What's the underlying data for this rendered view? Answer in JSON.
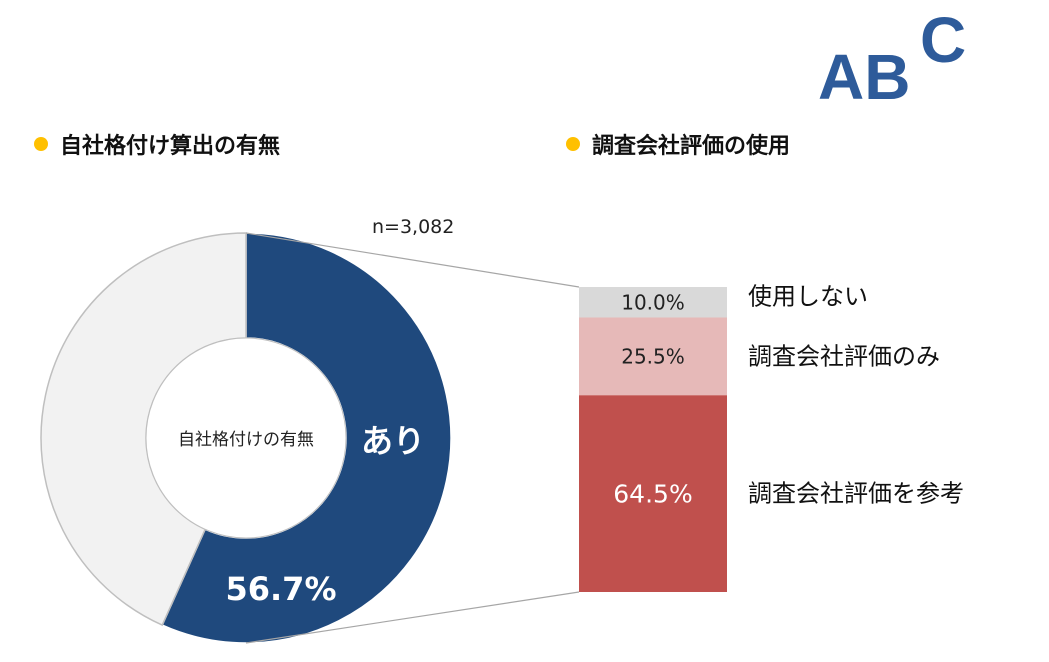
{
  "logo": {
    "text": "ABC",
    "color": "#2e5b9a"
  },
  "left_title": "自社格付け算出の有無",
  "right_title": "調査会社評価の使用",
  "colors": {
    "bullet": "#ffc000",
    "ari": "#1f497d",
    "nashi": "#f2f2f2",
    "seg1": "#d9d9d9",
    "seg2": "#e6b9b8",
    "seg3": "#c0504d"
  },
  "chart_data": [
    {
      "type": "pie",
      "donut": true,
      "title": "自社格付け算出の有無",
      "center_label": "自社格付けの有無",
      "n_label": "n=3,082",
      "slices": [
        {
          "label": "あり",
          "value": 56.7,
          "value_label": "56.7%"
        },
        {
          "label": "",
          "value": 43.3
        }
      ]
    },
    {
      "type": "bar",
      "stacked": true,
      "title": "調査会社評価の使用",
      "segments": [
        {
          "label": "使用しない",
          "value": 10.0,
          "value_label": "10.0%"
        },
        {
          "label": "調査会社評価のみ",
          "value": 25.5,
          "value_label": "25.5%"
        },
        {
          "label": "調査会社評価を参考",
          "value": 64.5,
          "value_label": "64.5%"
        }
      ]
    }
  ]
}
